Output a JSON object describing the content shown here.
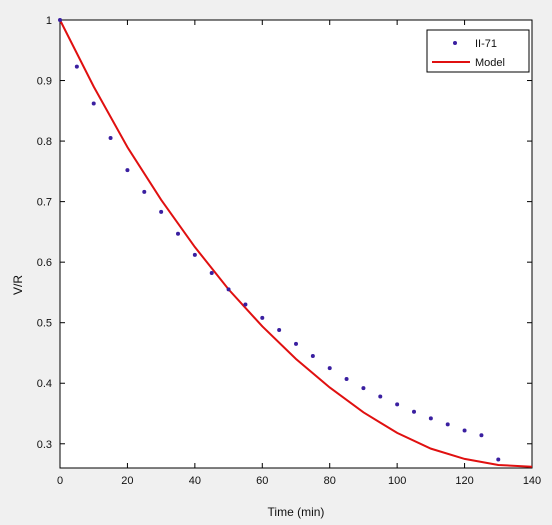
{
  "chart_data": {
    "type": "line",
    "xlabel": "Time (min)",
    "ylabel": "V/R",
    "xlim": [
      0,
      140
    ],
    "ylim": [
      0.26,
      1.0
    ],
    "xticks": [
      0,
      20,
      40,
      60,
      80,
      100,
      120,
      140
    ],
    "yticks": [
      0.3,
      0.4,
      0.5,
      0.6,
      0.7,
      0.8,
      0.9,
      1
    ],
    "xtick_labels": [
      "0",
      "20",
      "40",
      "60",
      "80",
      "100",
      "120",
      "140"
    ],
    "ytick_labels": [
      "0.3",
      "0.4",
      "0.5",
      "0.6",
      "0.7",
      "0.8",
      "0.9",
      "1"
    ],
    "grid": false,
    "legend_position": "top-right",
    "series": [
      {
        "name": "II-71",
        "kind": "scatter",
        "color": "#3a1fa0",
        "x": [
          0,
          5,
          10,
          15,
          20,
          25,
          30,
          35,
          40,
          45,
          50,
          55,
          60,
          65,
          70,
          75,
          80,
          85,
          90,
          95,
          100,
          105,
          110,
          115,
          120,
          125,
          130
        ],
        "y": [
          1.0,
          0.923,
          0.862,
          0.805,
          0.752,
          0.716,
          0.683,
          0.647,
          0.612,
          0.582,
          0.555,
          0.53,
          0.508,
          0.488,
          0.465,
          0.445,
          0.425,
          0.407,
          0.392,
          0.378,
          0.365,
          0.353,
          0.342,
          0.332,
          0.322,
          0.314,
          0.274
        ]
      },
      {
        "name": "Model",
        "kind": "line",
        "color": "#e01010",
        "x": [
          0,
          10,
          20,
          30,
          40,
          50,
          60,
          70,
          80,
          90,
          100,
          110,
          120,
          130,
          140
        ],
        "y": [
          1.0,
          0.89,
          0.79,
          0.703,
          0.625,
          0.555,
          0.494,
          0.44,
          0.393,
          0.352,
          0.318,
          0.292,
          0.275,
          0.265,
          0.262
        ]
      }
    ]
  }
}
